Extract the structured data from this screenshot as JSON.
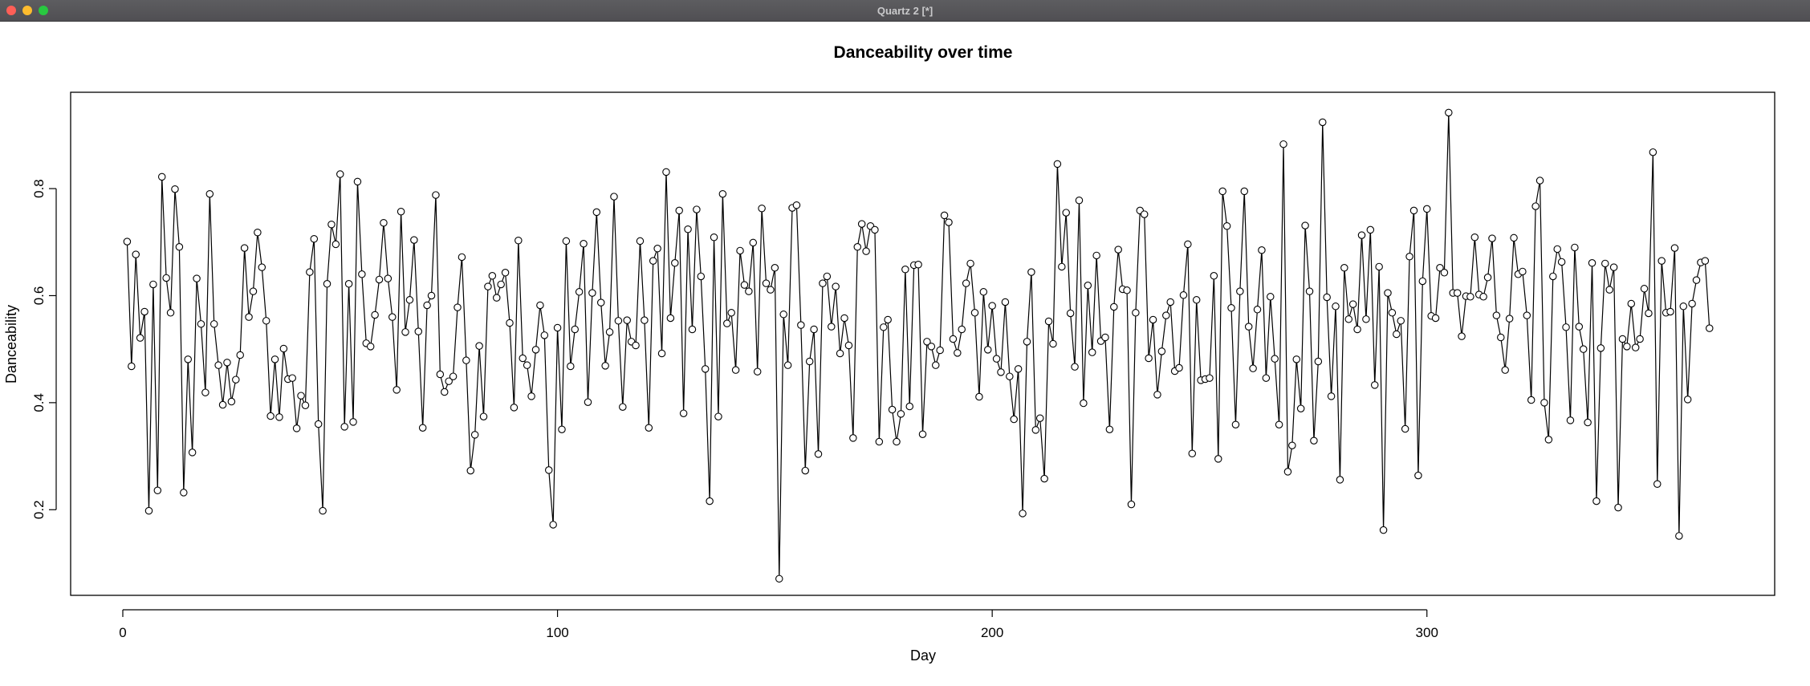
{
  "window": {
    "title": "Quartz 2 [*]"
  },
  "chart_data": {
    "type": "line",
    "title": "Danceability over time",
    "xlabel": "Day",
    "ylabel": "Danceability",
    "xlim": [
      -12,
      380
    ],
    "ylim": [
      0.04,
      0.98
    ],
    "xticks": [
      0,
      100,
      200,
      300
    ],
    "yticks": [
      0.2,
      0.4,
      0.6,
      0.8
    ],
    "grid": false,
    "markers": "open-circle",
    "x_start": 1,
    "values": [
      0.701,
      0.468,
      0.677,
      0.521,
      0.57,
      0.198,
      0.621,
      0.236,
      0.822,
      0.633,
      0.568,
      0.799,
      0.691,
      0.232,
      0.481,
      0.307,
      0.632,
      0.547,
      0.419,
      0.79,
      0.547,
      0.47,
      0.396,
      0.475,
      0.402,
      0.443,
      0.489,
      0.689,
      0.56,
      0.608,
      0.718,
      0.653,
      0.553,
      0.375,
      0.481,
      0.373,
      0.501,
      0.444,
      0.446,
      0.352,
      0.413,
      0.395,
      0.644,
      0.706,
      0.36,
      0.198,
      0.622,
      0.733,
      0.696,
      0.827,
      0.355,
      0.622,
      0.364,
      0.813,
      0.64,
      0.511,
      0.505,
      0.564,
      0.63,
      0.736,
      0.632,
      0.56,
      0.424,
      0.757,
      0.532,
      0.592,
      0.704,
      0.533,
      0.353,
      0.582,
      0.6,
      0.788,
      0.453,
      0.42,
      0.44,
      0.449,
      0.578,
      0.672,
      0.479,
      0.273,
      0.34,
      0.506,
      0.374,
      0.617,
      0.637,
      0.596,
      0.621,
      0.643,
      0.549,
      0.391,
      0.703,
      0.483,
      0.47,
      0.412,
      0.499,
      0.582,
      0.526,
      0.274,
      0.172,
      0.54,
      0.35,
      0.702,
      0.468,
      0.537,
      0.607,
      0.697,
      0.401,
      0.605,
      0.756,
      0.587,
      0.469,
      0.532,
      0.785,
      0.553,
      0.392,
      0.554,
      0.514,
      0.507,
      0.702,
      0.554,
      0.353,
      0.665,
      0.688,
      0.492,
      0.831,
      0.558,
      0.661,
      0.759,
      0.38,
      0.724,
      0.537,
      0.761,
      0.636,
      0.463,
      0.216,
      0.709,
      0.374,
      0.79,
      0.548,
      0.568,
      0.461,
      0.684,
      0.62,
      0.608,
      0.699,
      0.458,
      0.763,
      0.623,
      0.611,
      0.652,
      0.071,
      0.565,
      0.47,
      0.764,
      0.769,
      0.545,
      0.273,
      0.477,
      0.537,
      0.304,
      0.623,
      0.636,
      0.542,
      0.617,
      0.492,
      0.558,
      0.507,
      0.334,
      0.691,
      0.734,
      0.683,
      0.73,
      0.723,
      0.327,
      0.541,
      0.555,
      0.387,
      0.327,
      0.379,
      0.649,
      0.393,
      0.657,
      0.658,
      0.341,
      0.514,
      0.505,
      0.47,
      0.498,
      0.75,
      0.737,
      0.519,
      0.493,
      0.537,
      0.623,
      0.66,
      0.568,
      0.411,
      0.607,
      0.499,
      0.581,
      0.482,
      0.457,
      0.588,
      0.449,
      0.369,
      0.463,
      0.193,
      0.514,
      0.644,
      0.349,
      0.371,
      0.258,
      0.552,
      0.51,
      0.846,
      0.654,
      0.755,
      0.567,
      0.467,
      0.778,
      0.399,
      0.619,
      0.494,
      0.675,
      0.515,
      0.522,
      0.35,
      0.579,
      0.686,
      0.612,
      0.61,
      0.21,
      0.568,
      0.759,
      0.752,
      0.483,
      0.555,
      0.415,
      0.496,
      0.563,
      0.588,
      0.459,
      0.465,
      0.601,
      0.696,
      0.305,
      0.592,
      0.442,
      0.444,
      0.446,
      0.637,
      0.295,
      0.795,
      0.73,
      0.577,
      0.359,
      0.608,
      0.795,
      0.542,
      0.464,
      0.574,
      0.685,
      0.446,
      0.598,
      0.482,
      0.359,
      0.883,
      0.271,
      0.32,
      0.481,
      0.389,
      0.731,
      0.608,
      0.329,
      0.477,
      0.924,
      0.597,
      0.412,
      0.58,
      0.256,
      0.652,
      0.556,
      0.584,
      0.537,
      0.713,
      0.556,
      0.723,
      0.433,
      0.654,
      0.162,
      0.605,
      0.568,
      0.528,
      0.553,
      0.351,
      0.673,
      0.759,
      0.264,
      0.627,
      0.762,
      0.562,
      0.558,
      0.652,
      0.643,
      0.942,
      0.605,
      0.605,
      0.524,
      0.599,
      0.598,
      0.709,
      0.602,
      0.598,
      0.634,
      0.707,
      0.563,
      0.522,
      0.461,
      0.557,
      0.708,
      0.64,
      0.645,
      0.563,
      0.405,
      0.767,
      0.815,
      0.4,
      0.331,
      0.636,
      0.687,
      0.663,
      0.541,
      0.367,
      0.69,
      0.542,
      0.5,
      0.363,
      0.661,
      0.216,
      0.502,
      0.66,
      0.611,
      0.653,
      0.204,
      0.519,
      0.505,
      0.585,
      0.503,
      0.519,
      0.613,
      0.567,
      0.868,
      0.248,
      0.665,
      0.568,
      0.57,
      0.689,
      0.151,
      0.58,
      0.406,
      0.585,
      0.629,
      0.662,
      0.665,
      0.539
    ]
  }
}
